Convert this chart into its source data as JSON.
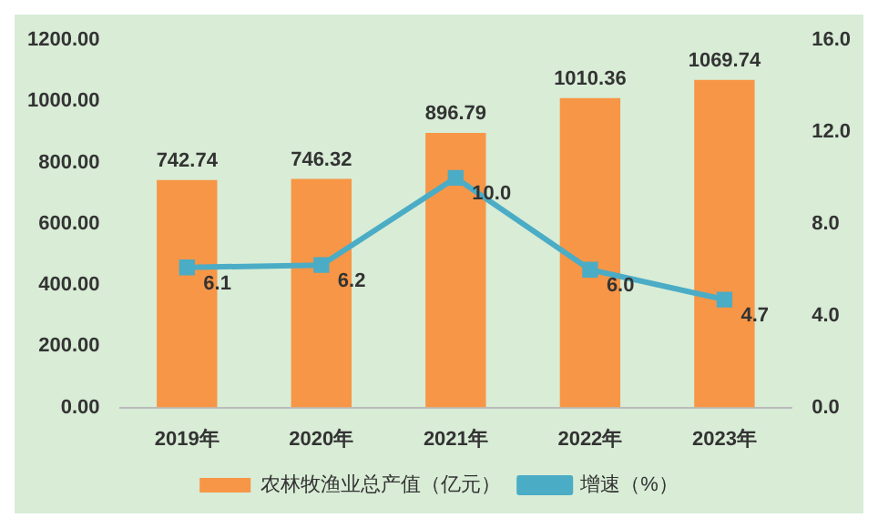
{
  "chart_data": {
    "type": "bar",
    "categories": [
      "2019年",
      "2020年",
      "2021年",
      "2022年",
      "2023年"
    ],
    "series": [
      {
        "name": "农林牧渔业总产值（亿元）",
        "color": "#f79646",
        "values": [
          742.74,
          746.32,
          896.79,
          1010.36,
          1069.74
        ]
      },
      {
        "name": "增速（%）",
        "type": "line",
        "axis": "y2",
        "color": "#4bacc6",
        "marker": "square",
        "values": [
          6.1,
          6.2,
          10.0,
          6.0,
          4.7
        ],
        "value_labels": [
          "6.1",
          "6.2",
          "10.0",
          "6.0",
          "4.7"
        ]
      }
    ],
    "ylim": [
      0,
      1200
    ],
    "yticks": [
      {
        "value": 0,
        "label": "0.00"
      },
      {
        "value": 200,
        "label": "200.00"
      },
      {
        "value": 400,
        "label": "400.00"
      },
      {
        "value": 600,
        "label": "600.00"
      },
      {
        "value": 800,
        "label": "800.00"
      },
      {
        "value": 1000,
        "label": "1000.00"
      },
      {
        "value": 1200,
        "label": "1200.00"
      }
    ],
    "y2lim": [
      0,
      16
    ],
    "y2ticks": [
      {
        "value": 0,
        "label": "0.0"
      },
      {
        "value": 4,
        "label": "4.0"
      },
      {
        "value": 8,
        "label": "8.0"
      },
      {
        "value": 12,
        "label": "12.0"
      },
      {
        "value": 16,
        "label": "16.0"
      }
    ],
    "data_labels": true,
    "grid": false,
    "legend": "bottom"
  }
}
